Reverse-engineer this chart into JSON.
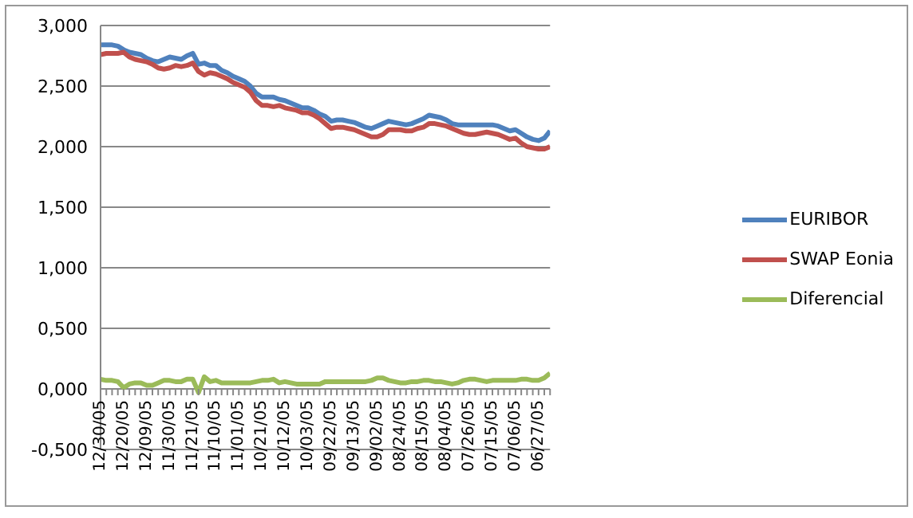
{
  "chart_data": {
    "type": "line",
    "categories": [
      "12/30/05",
      null,
      null,
      null,
      "12/20/05",
      null,
      null,
      null,
      "12/09/05",
      null,
      null,
      null,
      "11/30/05",
      null,
      null,
      null,
      "11/21/05",
      null,
      null,
      null,
      "11/10/05",
      null,
      null,
      null,
      "11/01/05",
      null,
      null,
      null,
      "10/21/05",
      null,
      null,
      null,
      "10/12/05",
      null,
      null,
      null,
      "10/03/05",
      null,
      null,
      null,
      "09/22/05",
      null,
      null,
      null,
      "09/13/05",
      null,
      null,
      null,
      "09/02/05",
      null,
      null,
      null,
      "08/24/05",
      null,
      null,
      null,
      "08/15/05",
      null,
      null,
      null,
      "08/04/05",
      null,
      null,
      null,
      "07/26/05",
      null,
      null,
      null,
      "07/15/05",
      null,
      null,
      null,
      "07/06/05",
      null,
      null,
      null,
      "06/27/05",
      null,
      null
    ],
    "series": [
      {
        "name": "EURIBOR",
        "color": "#4f81bd",
        "values": [
          2.84,
          2.84,
          2.84,
          2.83,
          2.8,
          2.78,
          2.77,
          2.76,
          2.73,
          2.71,
          2.7,
          2.72,
          2.74,
          2.73,
          2.72,
          2.75,
          2.77,
          2.68,
          2.69,
          2.67,
          2.67,
          2.63,
          2.61,
          2.58,
          2.56,
          2.54,
          2.5,
          2.44,
          2.41,
          2.41,
          2.41,
          2.39,
          2.38,
          2.36,
          2.34,
          2.32,
          2.32,
          2.3,
          2.27,
          2.25,
          2.21,
          2.22,
          2.22,
          2.21,
          2.2,
          2.18,
          2.16,
          2.15,
          2.17,
          2.19,
          2.21,
          2.2,
          2.19,
          2.18,
          2.19,
          2.21,
          2.23,
          2.26,
          2.25,
          2.24,
          2.22,
          2.19,
          2.18,
          2.18,
          2.18,
          2.18,
          2.18,
          2.18,
          2.18,
          2.17,
          2.15,
          2.13,
          2.14,
          2.11,
          2.08,
          2.06,
          2.05,
          2.07,
          2.13
        ]
      },
      {
        "name": "SWAP Eonia",
        "color": "#c0504d",
        "values": [
          2.76,
          2.77,
          2.77,
          2.77,
          2.78,
          2.74,
          2.72,
          2.71,
          2.7,
          2.68,
          2.65,
          2.64,
          2.65,
          2.67,
          2.66,
          2.67,
          2.69,
          2.62,
          2.59,
          2.61,
          2.6,
          2.58,
          2.56,
          2.53,
          2.51,
          2.49,
          2.45,
          2.38,
          2.34,
          2.34,
          2.33,
          2.34,
          2.32,
          2.31,
          2.3,
          2.28,
          2.28,
          2.26,
          2.23,
          2.19,
          2.15,
          2.16,
          2.16,
          2.15,
          2.14,
          2.12,
          2.1,
          2.08,
          2.08,
          2.1,
          2.14,
          2.14,
          2.14,
          2.13,
          2.13,
          2.15,
          2.16,
          2.19,
          2.19,
          2.18,
          2.17,
          2.15,
          2.13,
          2.11,
          2.1,
          2.1,
          2.11,
          2.12,
          2.11,
          2.1,
          2.08,
          2.06,
          2.07,
          2.03,
          2.0,
          1.99,
          1.98,
          1.98,
          2.0
        ]
      },
      {
        "name": "Diferencial",
        "color": "#9bbb59",
        "values": [
          0.08,
          0.07,
          0.07,
          0.06,
          0.01,
          0.04,
          0.05,
          0.05,
          0.03,
          0.03,
          0.05,
          0.07,
          0.07,
          0.06,
          0.06,
          0.08,
          0.08,
          -0.03,
          0.1,
          0.06,
          0.07,
          0.05,
          0.05,
          0.05,
          0.05,
          0.05,
          0.05,
          0.06,
          0.07,
          0.07,
          0.08,
          0.05,
          0.06,
          0.05,
          0.04,
          0.04,
          0.04,
          0.04,
          0.04,
          0.06,
          0.06,
          0.06,
          0.06,
          0.06,
          0.06,
          0.06,
          0.06,
          0.07,
          0.09,
          0.09,
          0.07,
          0.06,
          0.05,
          0.05,
          0.06,
          0.06,
          0.07,
          0.07,
          0.06,
          0.06,
          0.05,
          0.04,
          0.05,
          0.07,
          0.08,
          0.08,
          0.07,
          0.06,
          0.07,
          0.07,
          0.07,
          0.07,
          0.07,
          0.08,
          0.08,
          0.07,
          0.07,
          0.09,
          0.13
        ]
      }
    ],
    "ylim": [
      -0.5,
      3.0
    ],
    "yticks": [
      {
        "value": -0.5,
        "label": "-0,500"
      },
      {
        "value": 0,
        "label": "0,000"
      },
      {
        "value": 0.5,
        "label": "0,500"
      },
      {
        "value": 1.0,
        "label": "1,000"
      },
      {
        "value": 1.5,
        "label": "1,500"
      },
      {
        "value": 2.0,
        "label": "2,000"
      },
      {
        "value": 2.5,
        "label": "2,500"
      },
      {
        "value": 3.0,
        "label": "3,000"
      }
    ],
    "grid": "y",
    "legend": "right",
    "marker": "none",
    "line_style": "solid"
  }
}
